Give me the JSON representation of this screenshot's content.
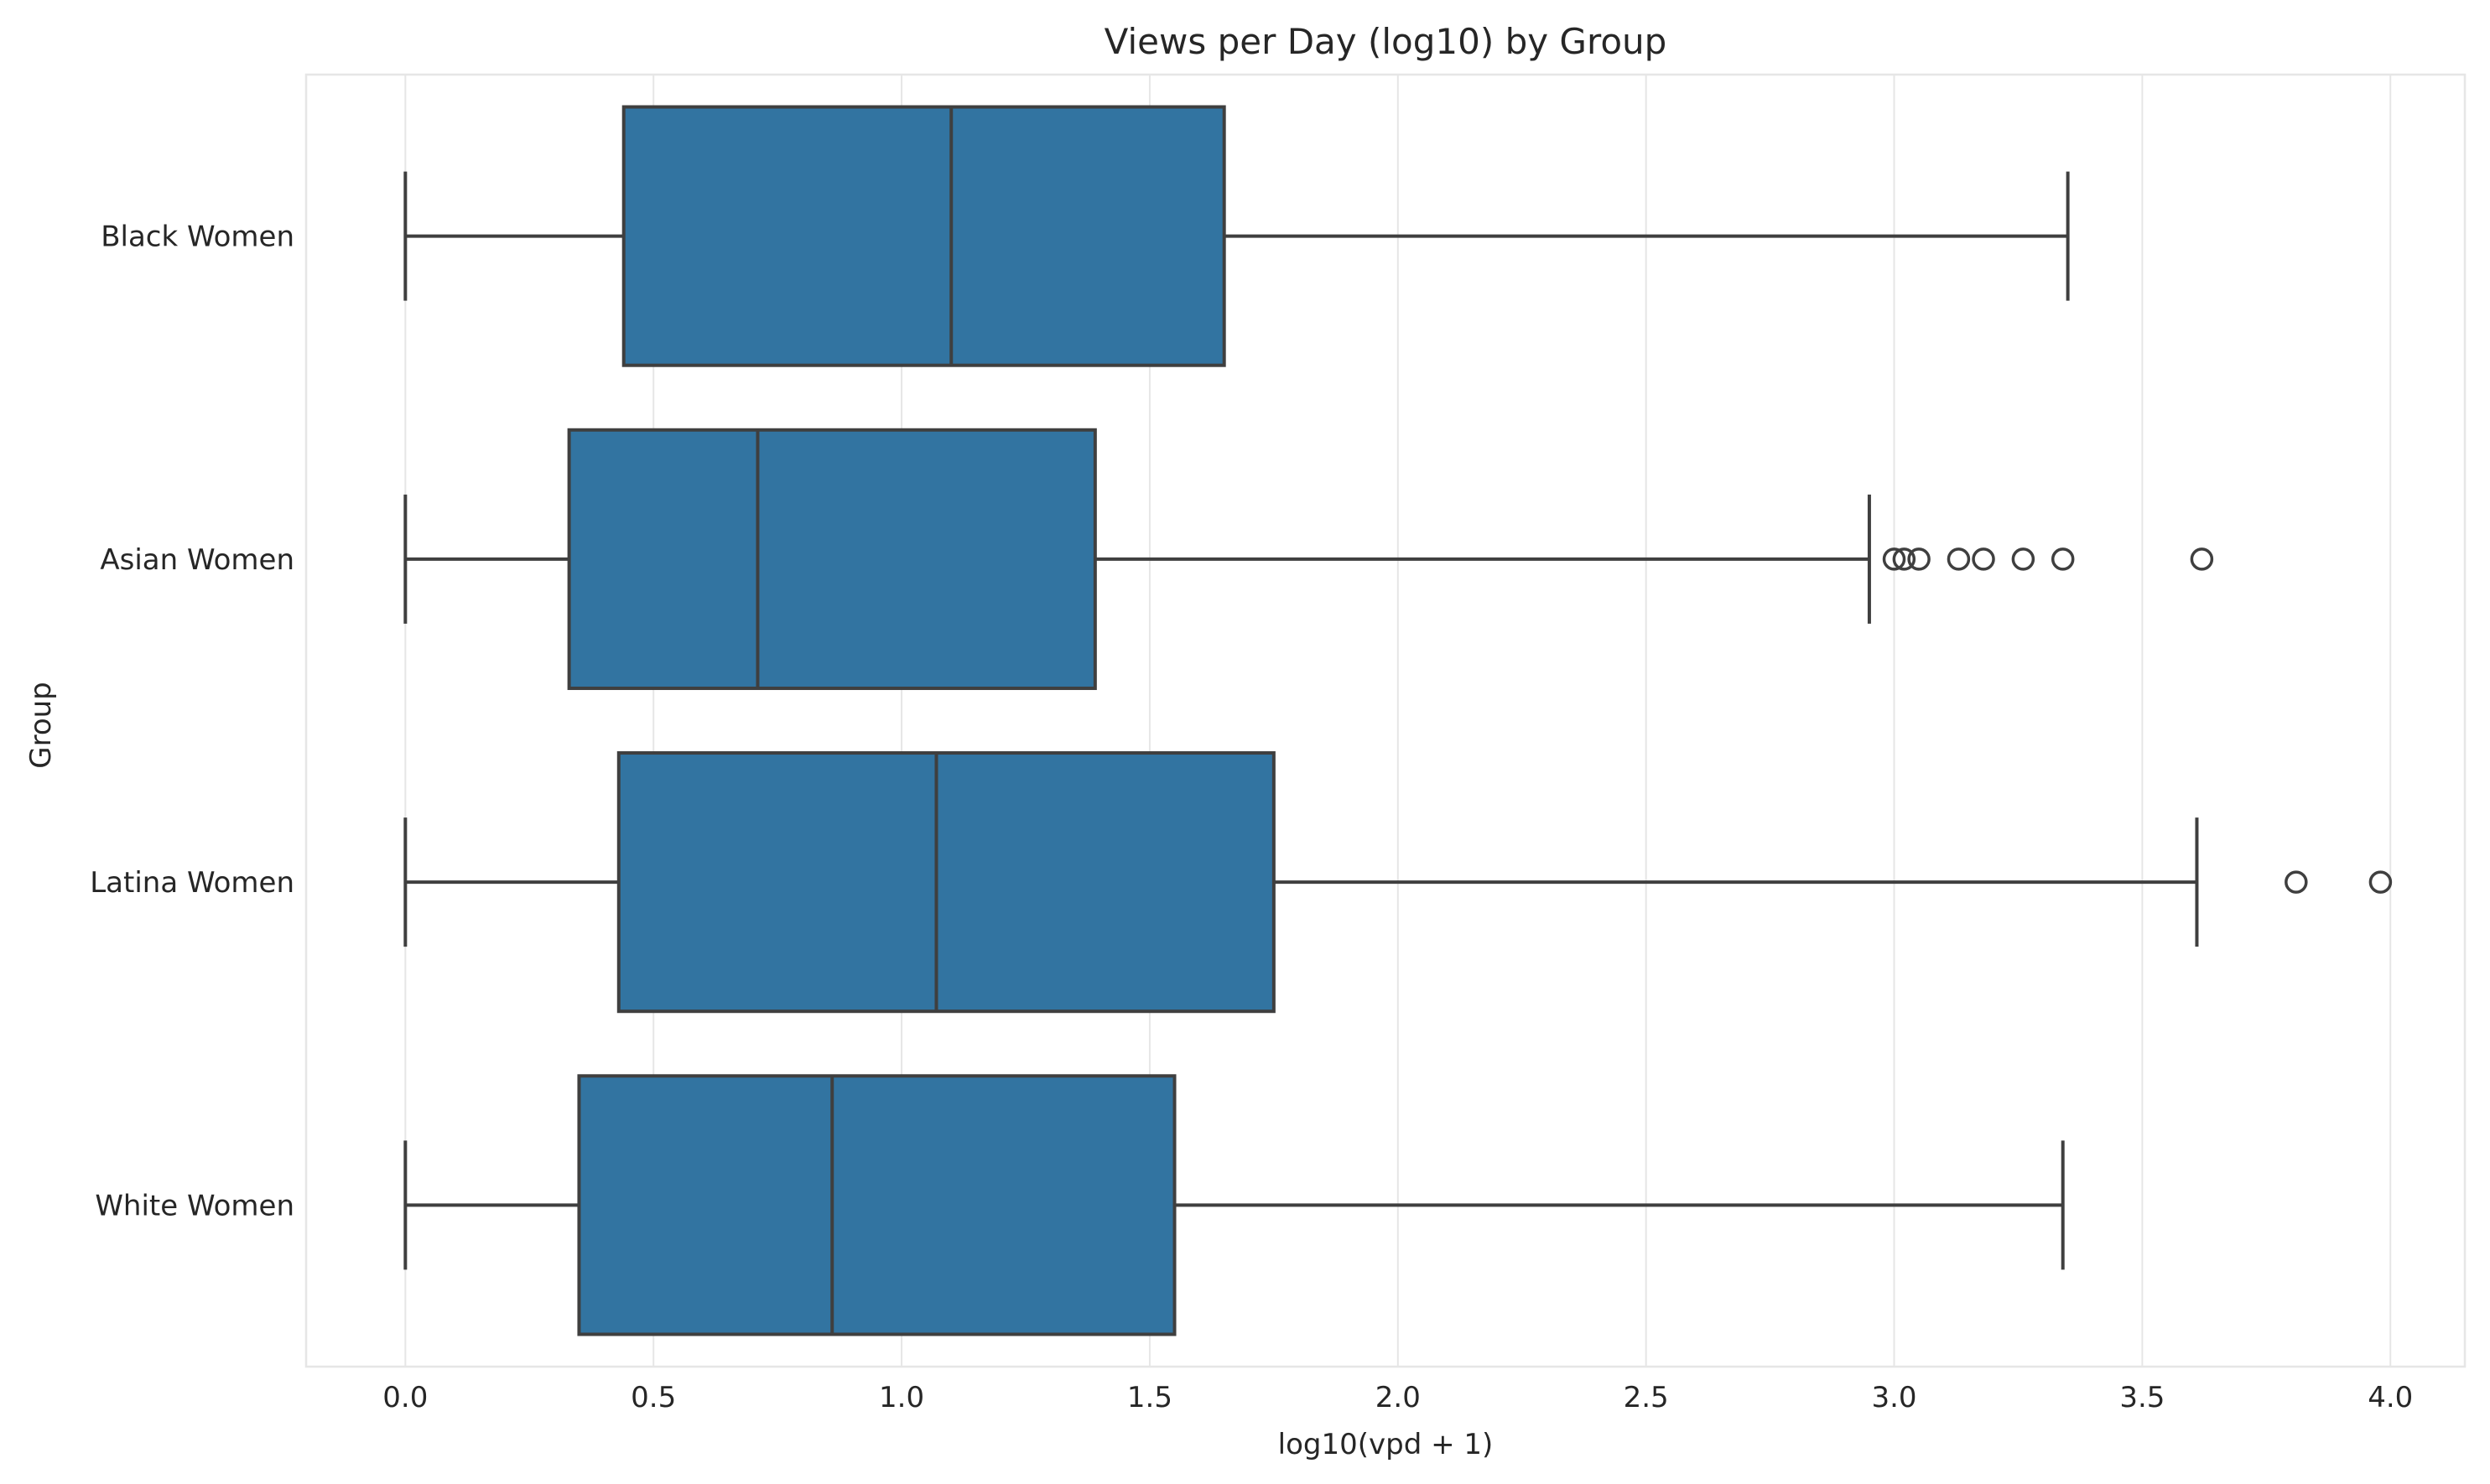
{
  "chart_data": {
    "type": "boxplot",
    "orientation": "horizontal",
    "title": "Views per Day (log10) by Group",
    "xlabel": "log10(vpd + 1)",
    "ylabel": "Group",
    "xlim": [
      -0.2,
      4.15
    ],
    "xticks": [
      0.0,
      0.5,
      1.0,
      1.5,
      2.0,
      2.5,
      3.0,
      3.5,
      4.0
    ],
    "xtick_labels": [
      "0.0",
      "0.5",
      "1.0",
      "1.5",
      "2.0",
      "2.5",
      "3.0",
      "3.5",
      "4.0"
    ],
    "grid": true,
    "box_color": "#3274a1",
    "line_color": "#3f3f3f",
    "groups": [
      {
        "name": "Black Women",
        "whisker_low": 0.0,
        "q1": 0.44,
        "median": 1.1,
        "q3": 1.65,
        "whisker_high": 3.35,
        "outliers": []
      },
      {
        "name": "Asian Women",
        "whisker_low": 0.0,
        "q1": 0.33,
        "median": 0.71,
        "q3": 1.39,
        "whisker_high": 2.95,
        "outliers": [
          3.0,
          3.02,
          3.05,
          3.13,
          3.18,
          3.26,
          3.34,
          3.62
        ]
      },
      {
        "name": "Latina Women",
        "whisker_low": 0.0,
        "q1": 0.43,
        "median": 1.07,
        "q3": 1.75,
        "whisker_high": 3.61,
        "outliers": [
          3.81,
          3.98
        ]
      },
      {
        "name": "White Women",
        "whisker_low": 0.0,
        "q1": 0.35,
        "median": 0.86,
        "q3": 1.55,
        "whisker_high": 3.34,
        "outliers": []
      }
    ]
  }
}
